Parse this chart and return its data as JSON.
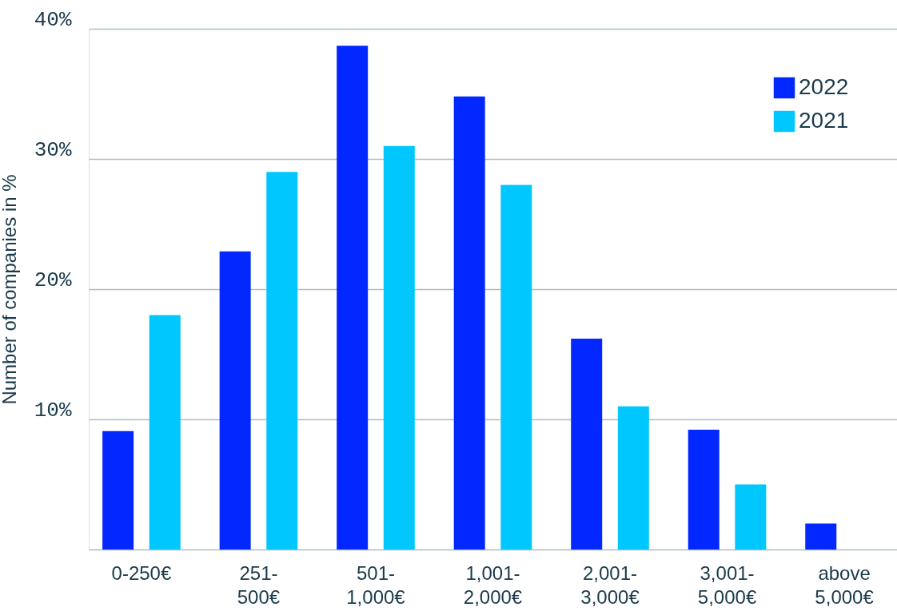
{
  "chart_data": {
    "type": "bar",
    "ylabel": "Number of companies in %",
    "categories": [
      "0-250€",
      "251-\n500€",
      "501-\n1,000€",
      "1,001-\n2,000€",
      "2,001-\n3,000€",
      "3,001-\n5,000€",
      "above\n5,000€"
    ],
    "series": [
      {
        "name": "2022",
        "color": "#0328ff",
        "values": [
          9.1,
          22.9,
          38.7,
          34.8,
          16.2,
          9.2,
          2.0
        ]
      },
      {
        "name": "2021",
        "color": "#00c8ff",
        "values": [
          18.0,
          29.0,
          31.0,
          28.0,
          11.0,
          5.0,
          0
        ]
      }
    ],
    "ylim": [
      0,
      40
    ],
    "yticks": [
      {
        "value": 0,
        "label": null
      },
      {
        "value": 10,
        "label": "10%"
      },
      {
        "value": 20,
        "label": "20%"
      },
      {
        "value": 30,
        "label": "30%"
      },
      {
        "value": 40,
        "label": "40%"
      }
    ],
    "grid": "y",
    "legend": "top right"
  }
}
